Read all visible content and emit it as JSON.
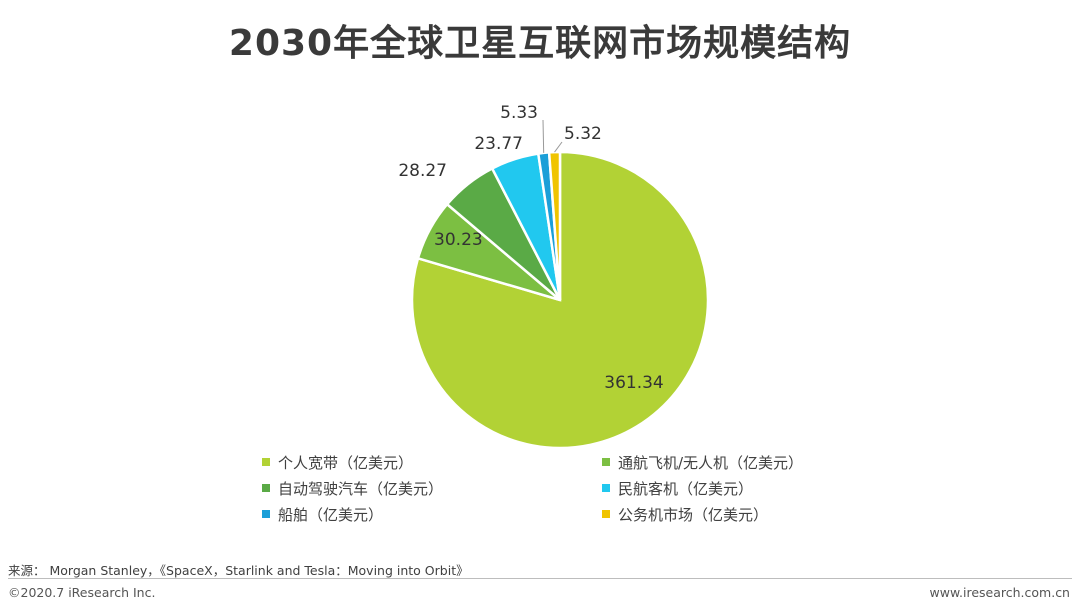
{
  "title": "2030年全球卫星互联网市场规模结构",
  "chart_data": {
    "type": "pie",
    "title": "2030年全球卫星互联网市场规模结构",
    "unit": "亿美元",
    "categories": [
      "个人宽带（亿美元）",
      "通航飞机/无人机（亿美元）",
      "自动驾驶汽车（亿美元）",
      "民航客机（亿美元）",
      "船舶（亿美元）",
      "公务机市场（亿美元）"
    ],
    "values": [
      361.34,
      30.23,
      28.27,
      23.77,
      5.33,
      5.32
    ],
    "value_labels": [
      "361.34",
      "30.23",
      "28.27",
      "23.77",
      "5.33",
      "5.32"
    ],
    "colors": [
      "#b2d235",
      "#7cbf42",
      "#5aaa46",
      "#21c8ef",
      "#1b9fd8",
      "#f0c400"
    ],
    "legend_position": "bottom"
  },
  "footer": {
    "source": "来源： Morgan Stanley，《SpaceX，Starlink and Tesla：Moving into Orbit》",
    "copyright": "©2020.7 iResearch Inc.",
    "website": "www.iresearch.com.cn"
  }
}
